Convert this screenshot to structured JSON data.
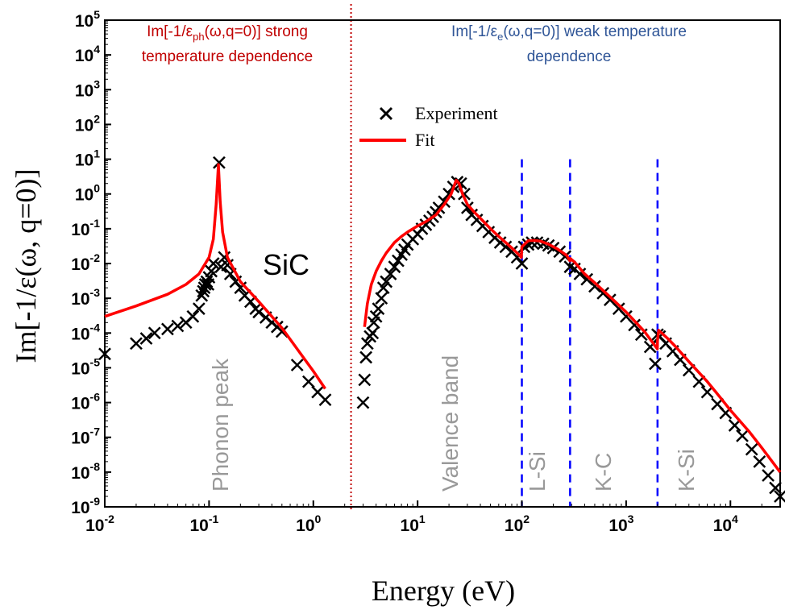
{
  "colors": {
    "fit": "#ff0000",
    "experiment": "#000000",
    "edge_line": "#0000ff",
    "divider": "#c00000",
    "note_red": "#c00000",
    "note_blue": "#2f5597",
    "region_label": "#999999"
  },
  "annotations": {
    "phonon_note_line1": "Im[-1/ε",
    "phonon_note_sub": "ph",
    "phonon_note_rest": "(ω,q=0)] strong",
    "phonon_note_line2": "temperature dependence",
    "electron_note_line1": "Im[-1/ε",
    "electron_note_sub": "e",
    "electron_note_rest": "(ω,q=0)] weak temperature",
    "electron_note_line2": "dependence",
    "material": "SiC",
    "phonon_peak": "Phonon peak",
    "valence_band": "Valence band",
    "edge_l_si": "L-Si",
    "edge_k_c": "K-C",
    "edge_k_si": "K-Si"
  },
  "chart_data": {
    "type": "scatter",
    "xlabel": "Energy (eV)",
    "ylabel": "Im[-1/ε(ω, q=0)]",
    "xscale": "log",
    "yscale": "log",
    "xlim": [
      0.01,
      30000
    ],
    "ylim": [
      1e-09,
      100000
    ],
    "x_ticks": [
      {
        "base": "10",
        "exp": "-2"
      },
      {
        "base": "10",
        "exp": "-1"
      },
      {
        "base": "10",
        "exp": "0"
      },
      {
        "base": "10",
        "exp": "1"
      },
      {
        "base": "10",
        "exp": "2"
      },
      {
        "base": "10",
        "exp": "3"
      },
      {
        "base": "10",
        "exp": "4"
      }
    ],
    "y_ticks": [
      {
        "base": "10",
        "exp": "-9"
      },
      {
        "base": "10",
        "exp": "-8"
      },
      {
        "base": "10",
        "exp": "-7"
      },
      {
        "base": "10",
        "exp": "-6"
      },
      {
        "base": "10",
        "exp": "-5"
      },
      {
        "base": "10",
        "exp": "-4"
      },
      {
        "base": "10",
        "exp": "-3"
      },
      {
        "base": "10",
        "exp": "-2"
      },
      {
        "base": "10",
        "exp": "-1"
      },
      {
        "base": "10",
        "exp": "0"
      },
      {
        "base": "10",
        "exp": "1"
      },
      {
        "base": "10",
        "exp": "2"
      },
      {
        "base": "10",
        "exp": "3"
      },
      {
        "base": "10",
        "exp": "4"
      },
      {
        "base": "10",
        "exp": "5"
      }
    ],
    "legend": {
      "placement": "upper-center",
      "experiment": "Experiment",
      "fit": "Fit"
    },
    "vertical_markers": [
      {
        "x": 2.3,
        "style": "dotted",
        "role": "divider"
      },
      {
        "x": 100,
        "style": "dashed",
        "label": "L-Si"
      },
      {
        "x": 290,
        "style": "dashed",
        "label": "K-C"
      },
      {
        "x": 2000,
        "style": "dashed",
        "label": "K-Si"
      }
    ],
    "series": [
      {
        "name": "Experiment",
        "marker": "x",
        "points": [
          [
            0.01,
            2.5e-05
          ],
          [
            0.02,
            5e-05
          ],
          [
            0.025,
            7e-05
          ],
          [
            0.03,
            0.0001
          ],
          [
            0.04,
            0.00013
          ],
          [
            0.05,
            0.00016
          ],
          [
            0.06,
            0.0002
          ],
          [
            0.07,
            0.0003
          ],
          [
            0.08,
            0.0005
          ],
          [
            0.085,
            0.0012
          ],
          [
            0.088,
            0.0016
          ],
          [
            0.09,
            0.002
          ],
          [
            0.092,
            0.0025
          ],
          [
            0.095,
            0.003
          ],
          [
            0.098,
            0.0025
          ],
          [
            0.1,
            0.004
          ],
          [
            0.105,
            0.006
          ],
          [
            0.11,
            0.01
          ],
          [
            0.125,
            8
          ],
          [
            0.13,
            0.008
          ],
          [
            0.14,
            0.015
          ],
          [
            0.15,
            0.009
          ],
          [
            0.16,
            0.005
          ],
          [
            0.18,
            0.003
          ],
          [
            0.2,
            0.002
          ],
          [
            0.22,
            0.0012
          ],
          [
            0.25,
            0.0008
          ],
          [
            0.28,
            0.0005
          ],
          [
            0.3,
            0.0004
          ],
          [
            0.35,
            0.00028
          ],
          [
            0.4,
            0.0002
          ],
          [
            0.45,
            0.00015
          ],
          [
            0.5,
            0.00011
          ],
          [
            0.7,
            1.2e-05
          ],
          [
            0.9,
            4e-06
          ],
          [
            1.1,
            2e-06
          ],
          [
            1.3,
            1.2e-06
          ],
          [
            3,
            1e-06
          ],
          [
            3.1,
            4.5e-06
          ],
          [
            3.2,
            2e-05
          ],
          [
            3.3,
            5e-05
          ],
          [
            3.5,
            8e-05
          ],
          [
            3.7,
            0.0001
          ],
          [
            3.8,
            0.0002
          ],
          [
            4,
            0.0003
          ],
          [
            4.2,
            0.0005
          ],
          [
            4.5,
            0.001
          ],
          [
            4.7,
            0.002
          ],
          [
            5,
            0.003
          ],
          [
            5.5,
            0.005
          ],
          [
            6,
            0.008
          ],
          [
            6.5,
            0.012
          ],
          [
            7,
            0.018
          ],
          [
            7.5,
            0.025
          ],
          [
            8,
            0.035
          ],
          [
            9,
            0.05
          ],
          [
            10,
            0.07
          ],
          [
            11,
            0.1
          ],
          [
            12,
            0.13
          ],
          [
            13,
            0.17
          ],
          [
            14,
            0.22
          ],
          [
            15,
            0.3
          ],
          [
            16,
            0.4
          ],
          [
            18,
            0.6
          ],
          [
            20,
            1
          ],
          [
            22,
            1.6
          ],
          [
            24,
            2.2
          ],
          [
            26,
            2
          ],
          [
            28,
            1
          ],
          [
            30,
            0.4
          ],
          [
            33,
            0.25
          ],
          [
            37,
            0.18
          ],
          [
            42,
            0.12
          ],
          [
            48,
            0.08
          ],
          [
            55,
            0.055
          ],
          [
            62,
            0.04
          ],
          [
            70,
            0.03
          ],
          [
            80,
            0.022
          ],
          [
            90,
            0.015
          ],
          [
            100,
            0.01
          ],
          [
            105,
            0.03
          ],
          [
            115,
            0.035
          ],
          [
            125,
            0.04
          ],
          [
            140,
            0.04
          ],
          [
            160,
            0.037
          ],
          [
            180,
            0.033
          ],
          [
            200,
            0.028
          ],
          [
            230,
            0.022
          ],
          [
            260,
            0.016
          ],
          [
            290,
            0.008
          ],
          [
            320,
            0.007
          ],
          [
            360,
            0.005
          ],
          [
            420,
            0.0035
          ],
          [
            500,
            0.0022
          ],
          [
            600,
            0.0014
          ],
          [
            700,
            0.0009
          ],
          [
            850,
            0.0005
          ],
          [
            1000,
            0.0003
          ],
          [
            1200,
            0.00017
          ],
          [
            1400,
            9e-05
          ],
          [
            1700,
            4e-05
          ],
          [
            1900,
            1.3e-05
          ],
          [
            2000,
            9e-05
          ],
          [
            2100,
            8e-05
          ],
          [
            2400,
            5e-05
          ],
          [
            2800,
            3e-05
          ],
          [
            3300,
            1.7e-05
          ],
          [
            4000,
            8.5e-06
          ],
          [
            5000,
            4e-06
          ],
          [
            6000,
            2e-06
          ],
          [
            7500,
            9e-07
          ],
          [
            9000,
            5e-07
          ],
          [
            11000,
            2.2e-07
          ],
          [
            13000,
            1.1e-07
          ],
          [
            16000,
            4.5e-08
          ],
          [
            19000,
            2e-08
          ],
          [
            23000,
            8e-09
          ],
          [
            27000,
            3.5e-09
          ],
          [
            30000,
            2e-09
          ]
        ]
      },
      {
        "name": "Fit",
        "marker": "line",
        "points": [
          [
            0.01,
            0.0003
          ],
          [
            0.02,
            0.0006
          ],
          [
            0.04,
            0.0013
          ],
          [
            0.06,
            0.0025
          ],
          [
            0.08,
            0.005
          ],
          [
            0.1,
            0.015
          ],
          [
            0.11,
            0.05
          ],
          [
            0.117,
            0.5
          ],
          [
            0.123,
            7
          ],
          [
            0.128,
            0.6
          ],
          [
            0.135,
            0.08
          ],
          [
            0.15,
            0.015
          ],
          [
            0.2,
            0.003
          ],
          [
            0.3,
            0.0008
          ],
          [
            0.5,
            0.00014
          ],
          [
            0.8,
            2e-05
          ],
          [
            1.0,
            8e-06
          ],
          [
            1.3,
            2.5e-06
          ],
          [
            3.1,
            0.00015
          ],
          [
            3.3,
            0.0007
          ],
          [
            3.6,
            0.0025
          ],
          [
            4,
            0.006
          ],
          [
            4.5,
            0.012
          ],
          [
            5,
            0.02
          ],
          [
            6,
            0.04
          ],
          [
            7,
            0.06
          ],
          [
            8,
            0.08
          ],
          [
            10,
            0.12
          ],
          [
            12,
            0.16
          ],
          [
            15,
            0.25
          ],
          [
            18,
            0.5
          ],
          [
            21,
            1
          ],
          [
            23.5,
            2.5
          ],
          [
            25,
            2
          ],
          [
            27,
            1
          ],
          [
            30,
            0.5
          ],
          [
            35,
            0.3
          ],
          [
            40,
            0.2
          ],
          [
            50,
            0.1
          ],
          [
            60,
            0.06
          ],
          [
            70,
            0.04
          ],
          [
            80,
            0.028
          ],
          [
            90,
            0.02
          ],
          [
            99,
            0.015
          ],
          [
            100,
            0.03
          ],
          [
            115,
            0.045
          ],
          [
            130,
            0.046
          ],
          [
            150,
            0.044
          ],
          [
            180,
            0.036
          ],
          [
            220,
            0.026
          ],
          [
            270,
            0.017
          ],
          [
            289,
            0.012
          ],
          [
            291,
            0.014
          ],
          [
            320,
            0.011
          ],
          [
            400,
            0.005
          ],
          [
            500,
            0.0028
          ],
          [
            700,
            0.0011
          ],
          [
            1000,
            0.0004
          ],
          [
            1500,
            0.00011
          ],
          [
            1990,
            3.5e-05
          ],
          [
            2000,
            6e-05
          ],
          [
            2050,
            0.00012
          ],
          [
            2500,
            7e-05
          ],
          [
            3000,
            4e-05
          ],
          [
            4000,
            1.5e-05
          ],
          [
            6000,
            4e-06
          ],
          [
            8000,
            1.4e-06
          ],
          [
            10000,
            6e-07
          ],
          [
            15000,
            1.5e-07
          ],
          [
            20000,
            5e-08
          ],
          [
            30000,
            1e-08
          ]
        ]
      }
    ]
  }
}
